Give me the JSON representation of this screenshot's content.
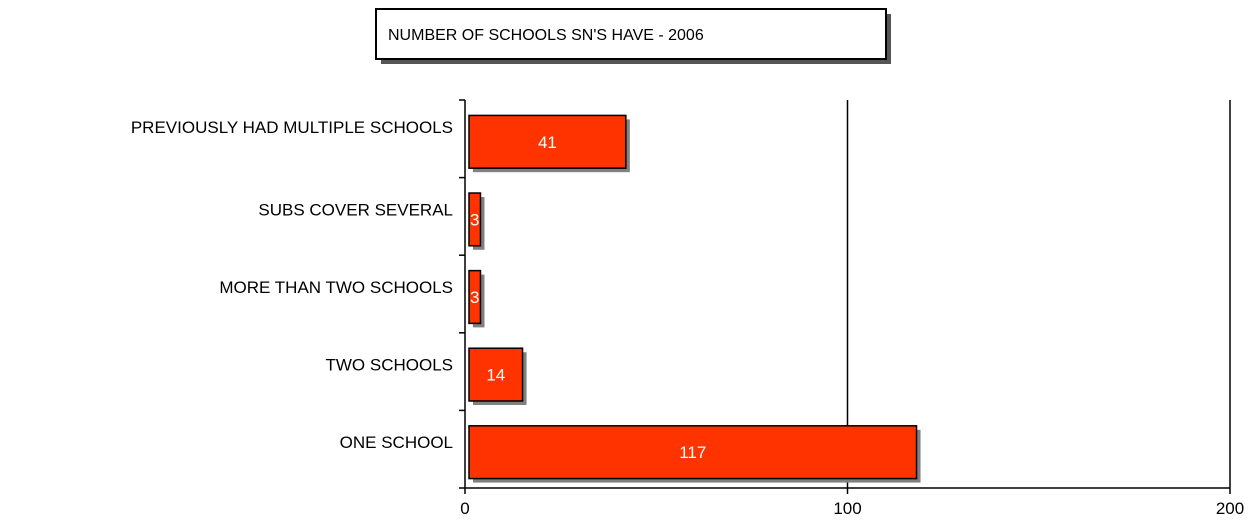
{
  "chart_data": {
    "type": "bar",
    "orientation": "horizontal",
    "title": "NUMBER OF SCHOOLS SN'S HAVE - 2006",
    "categories": [
      "PREVIOUSLY HAD MULTIPLE SCHOOLS",
      "SUBS COVER SEVERAL",
      "MORE THAN TWO SCHOOLS",
      "TWO SCHOOLS",
      "ONE SCHOOL"
    ],
    "values": [
      41,
      3,
      3,
      14,
      117
    ],
    "data_labels": [
      "41",
      "3",
      "3",
      "14",
      "117"
    ],
    "xlim": [
      0,
      200
    ],
    "xticks": [
      "0",
      "100",
      "200"
    ],
    "grid": "vertical major gridlines",
    "bar_color": "#ff3300",
    "shadow_color": "#808080",
    "legend": "none"
  }
}
